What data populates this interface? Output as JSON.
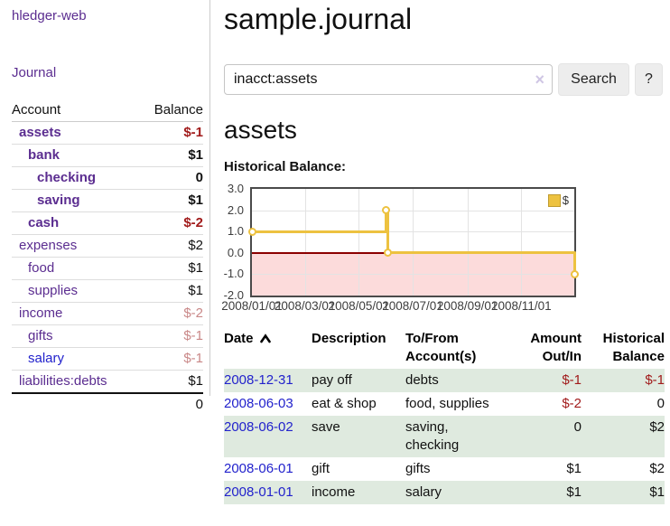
{
  "colors": {
    "link_visited": "#5b2d90",
    "link_unvisited": "#2222cc",
    "negative_strong": "#a11b1b",
    "negative_muted": "#c98888",
    "row_shade_green": "#dfeadf",
    "chart_line": "#edc240",
    "chart_negative_fill": "#fcdbdb",
    "chart_zero_line": "#8b0000"
  },
  "sidebar": {
    "app_title": "hledger-web",
    "nav_journal": "Journal",
    "accounts_table": {
      "header_account": "Account",
      "header_balance": "Balance",
      "rows": [
        {
          "name": "assets",
          "indent": 1,
          "bold": true,
          "balance": "$-1",
          "visited": true
        },
        {
          "name": "bank",
          "indent": 2,
          "bold": true,
          "balance": "$1",
          "visited": true
        },
        {
          "name": "checking",
          "indent": 3,
          "bold": true,
          "balance": "0",
          "visited": true
        },
        {
          "name": "saving",
          "indent": 3,
          "bold": true,
          "balance": "$1",
          "visited": true
        },
        {
          "name": "cash",
          "indent": 2,
          "bold": true,
          "balance": "$-2",
          "visited": true
        },
        {
          "name": "expenses",
          "indent": 1,
          "bold": false,
          "balance": "$2",
          "visited": true
        },
        {
          "name": "food",
          "indent": 2,
          "bold": false,
          "balance": "$1",
          "visited": true
        },
        {
          "name": "supplies",
          "indent": 2,
          "bold": false,
          "balance": "$1",
          "visited": true
        },
        {
          "name": "income",
          "indent": 1,
          "bold": false,
          "balance": "$-2",
          "visited": true
        },
        {
          "name": "gifts",
          "indent": 2,
          "bold": false,
          "balance": "$-1",
          "visited": true
        },
        {
          "name": "salary",
          "indent": 2,
          "bold": false,
          "balance": "$-1",
          "visited": false
        },
        {
          "name": "liabilities:debts",
          "indent": 1,
          "bold": false,
          "balance": "$1",
          "visited": true
        }
      ],
      "total": "0"
    }
  },
  "main": {
    "page_title": "sample.journal",
    "search": {
      "value": "inacct:assets",
      "clear_icon": "×",
      "button_label": "Search",
      "help_label": "?"
    },
    "account_heading": "assets",
    "chart_label": "Historical Balance:"
  },
  "chart_data": {
    "type": "line",
    "step": true,
    "title": "Historical Balance",
    "xlabel": "",
    "ylabel": "",
    "x_range": [
      "2008-01-01",
      "2008-12-31"
    ],
    "ylim": [
      -2,
      3
    ],
    "grid": true,
    "y_ticks": [
      {
        "v": 3,
        "label": "3.0"
      },
      {
        "v": 2,
        "label": "2.0"
      },
      {
        "v": 1,
        "label": "1.0"
      },
      {
        "v": 0,
        "label": "0.0"
      },
      {
        "v": -1,
        "label": "-1.0"
      },
      {
        "v": -2,
        "label": "-2.0"
      }
    ],
    "x_ticks": [
      {
        "date": "2008-01-01",
        "label": "2008/01/01"
      },
      {
        "date": "2008-03-01",
        "label": "2008/03/01"
      },
      {
        "date": "2008-05-01",
        "label": "2008/05/01"
      },
      {
        "date": "2008-07-01",
        "label": "2008/07/01"
      },
      {
        "date": "2008-09-01",
        "label": "2008/09/01"
      },
      {
        "date": "2008-11-01",
        "label": "2008/11/01"
      }
    ],
    "series": [
      {
        "name": "$",
        "color": "#edc240",
        "points": [
          {
            "date": "2008-01-01",
            "value": 1
          },
          {
            "date": "2008-06-01",
            "value": 2
          },
          {
            "date": "2008-06-03",
            "value": 0
          },
          {
            "date": "2008-12-31",
            "value": -1
          }
        ]
      }
    ],
    "legend": {
      "position": "top-right",
      "label": "$"
    }
  },
  "register_table": {
    "headers": [
      {
        "id": "date",
        "lines": [
          "Date"
        ],
        "sorted": "ascending"
      },
      {
        "id": "description",
        "lines": [
          "Description"
        ]
      },
      {
        "id": "accounts",
        "lines": [
          "To/From",
          "Account(s)"
        ]
      },
      {
        "id": "amount",
        "lines": [
          "Amount",
          "Out/In"
        ]
      },
      {
        "id": "balance",
        "lines": [
          "Historical",
          "Balance"
        ]
      }
    ],
    "rows": [
      {
        "date": "2008-12-31",
        "description": "pay off",
        "accounts": "debts",
        "amount": "$-1",
        "balance": "$-1",
        "shaded": true
      },
      {
        "date": "2008-06-03",
        "description": "eat & shop",
        "accounts": "food, supplies",
        "amount": "$-2",
        "balance": "0",
        "shaded": false
      },
      {
        "date": "2008-06-02",
        "description": "save",
        "accounts": "saving,\nchecking",
        "amount": "0",
        "balance": "$2",
        "shaded": true
      },
      {
        "date": "2008-06-01",
        "description": "gift",
        "accounts": "gifts",
        "amount": "$1",
        "balance": "$2",
        "shaded": false
      },
      {
        "date": "2008-01-01",
        "description": "income",
        "accounts": "salary",
        "amount": "$1",
        "balance": "$1",
        "shaded": true
      }
    ]
  }
}
